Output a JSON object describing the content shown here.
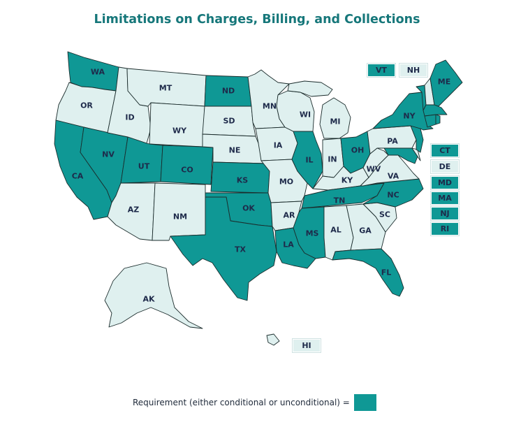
{
  "title": "Limitations on Charges, Billing, and Collections",
  "colors": {
    "requirement": "#0f9895",
    "no_requirement": "#dff0ef",
    "border": "#1b2c2c",
    "title": "#16777a"
  },
  "legend": {
    "label": "Requirement (either conditional or unconditional) ="
  },
  "states": {
    "WA": "requirement",
    "OR": "none",
    "CA": "requirement",
    "NV": "requirement",
    "ID": "none",
    "MT": "none",
    "WY": "none",
    "UT": "requirement",
    "CO": "requirement",
    "AZ": "none",
    "NM": "none",
    "ND": "requirement",
    "SD": "none",
    "NE": "none",
    "KS": "requirement",
    "OK": "requirement",
    "TX": "requirement",
    "MN": "none",
    "IA": "none",
    "MO": "none",
    "AR": "none",
    "LA": "requirement",
    "WI": "none",
    "IL": "requirement",
    "MI": "none",
    "IN": "none",
    "OH": "requirement",
    "KY": "none",
    "TN": "requirement",
    "MS": "requirement",
    "AL": "none",
    "GA": "none",
    "FL": "requirement",
    "SC": "none",
    "NC": "requirement",
    "VA": "none",
    "WV": "none",
    "PA": "none",
    "NY": "requirement",
    "ME": "requirement",
    "VT": "requirement",
    "NH": "none",
    "MA": "requirement",
    "RI": "requirement",
    "CT": "requirement",
    "NJ": "requirement",
    "DE": "none",
    "MD": "requirement",
    "AK": "none",
    "HI": "none"
  },
  "labels": {
    "WA": "WA",
    "OR": "OR",
    "CA": "CA",
    "NV": "NV",
    "ID": "ID",
    "MT": "MT",
    "WY": "WY",
    "UT": "UT",
    "CO": "CO",
    "AZ": "AZ",
    "NM": "NM",
    "ND": "ND",
    "SD": "SD",
    "NE": "NE",
    "KS": "KS",
    "OK": "OK",
    "TX": "TX",
    "MN": "MN",
    "IA": "IA",
    "MO": "MO",
    "AR": "AR",
    "LA": "LA",
    "WI": "WI",
    "IL": "IL",
    "MI": "MI",
    "IN": "IN",
    "OH": "OH",
    "KY": "KY",
    "TN": "TN",
    "MS": "MS",
    "AL": "AL",
    "GA": "GA",
    "FL": "FL",
    "SC": "SC",
    "NC": "NC",
    "VA": "VA",
    "WV": "WV",
    "PA": "PA",
    "NY": "NY",
    "ME": "ME",
    "AK": "AK"
  },
  "boxes": {
    "VT": "VT",
    "NH": "NH",
    "CT": "CT",
    "DE": "DE",
    "MD": "MD",
    "MA": "MA",
    "NJ": "NJ",
    "RI": "RI",
    "HI": "HI"
  }
}
